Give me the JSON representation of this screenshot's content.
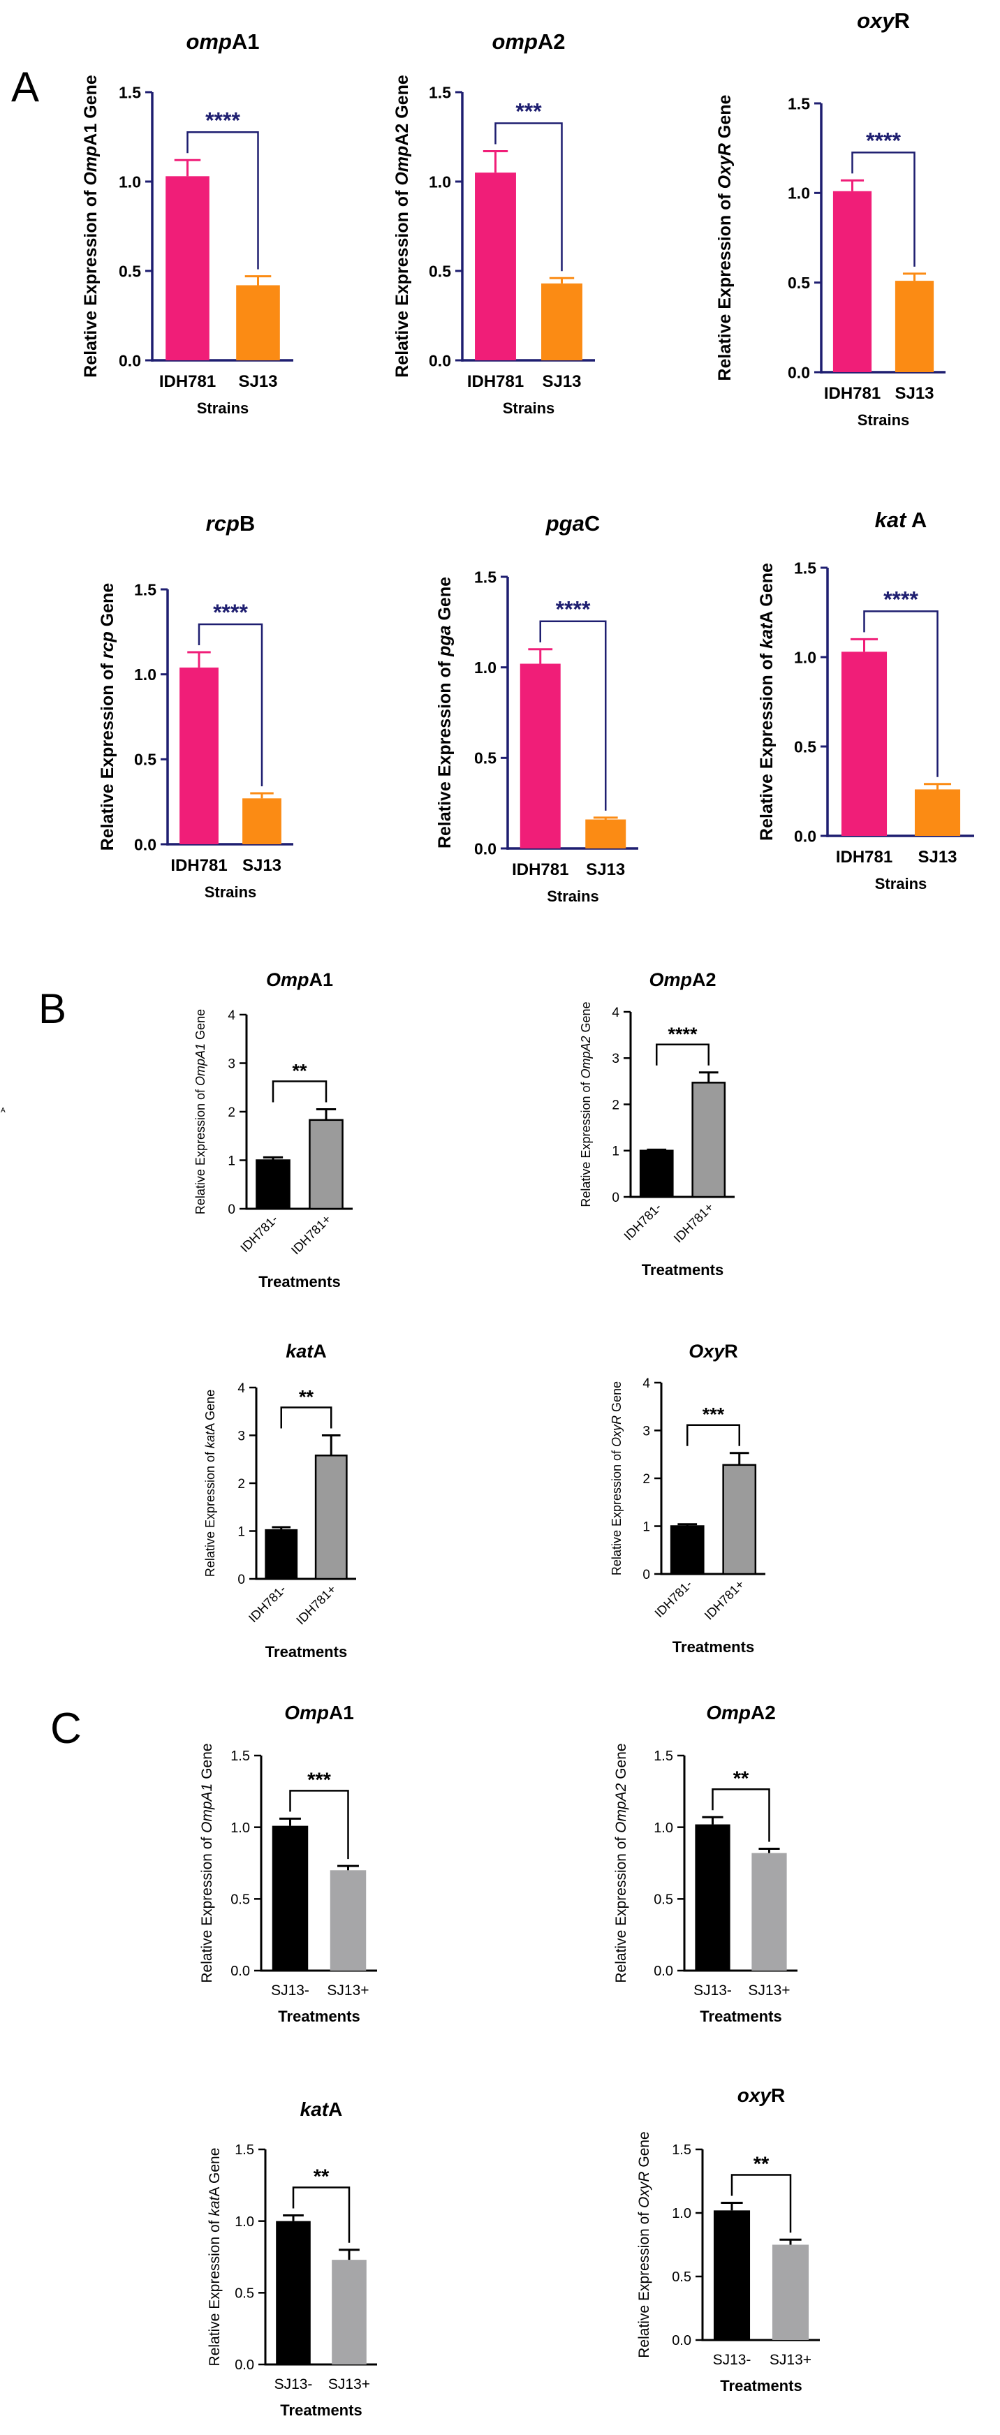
{
  "panels": {
    "A": {
      "label": "A",
      "color": "#1e1e70",
      "xlabel": "Strains",
      "stat_color": "#1e1e70"
    },
    "B": {
      "label": "B",
      "color": "#000000",
      "xlabel": "Treatments",
      "stat_color": "#000000"
    },
    "C": {
      "label": "C",
      "color": "#000000",
      "xlabel": "Treatments",
      "stat_color": "#000000"
    }
  },
  "stray_label": "A",
  "colors": {
    "idh781": "#f01e78",
    "sj13": "#fb8b14",
    "control": "#000000",
    "treated_b": "#9b9b9b",
    "treated_c": "#a6a6a8",
    "axis_a": "#1e1e70"
  },
  "chart_data": [
    {
      "id": "A1",
      "panel": "A",
      "type": "bar",
      "title_italic": "omp",
      "title_rest": "A1",
      "ylabel_pre": "Relative Expression of ",
      "ylabel_italic": "Omp",
      "ylabel_post": "A1 Gene",
      "xlabel": "Strains",
      "categories": [
        "IDH781",
        "SJ13"
      ],
      "values": [
        1.03,
        0.42
      ],
      "errors": [
        0.09,
        0.05
      ],
      "bar_colors": [
        "#f01e78",
        "#fb8b14"
      ],
      "ylim": [
        0,
        1.5
      ],
      "ticks": [
        "0.0",
        "0.5",
        "1.0",
        "1.5"
      ],
      "significance": "****"
    },
    {
      "id": "A2",
      "panel": "A",
      "type": "bar",
      "title_italic": "omp",
      "title_rest": "A2",
      "ylabel_pre": "Relative Expression of ",
      "ylabel_italic": "Omp",
      "ylabel_post": "A2 Gene",
      "xlabel": "Strains",
      "categories": [
        "IDH781",
        "SJ13"
      ],
      "values": [
        1.05,
        0.43
      ],
      "errors": [
        0.12,
        0.03
      ],
      "bar_colors": [
        "#f01e78",
        "#fb8b14"
      ],
      "ylim": [
        0,
        1.5
      ],
      "ticks": [
        "0.0",
        "0.5",
        "1.0",
        "1.5"
      ],
      "significance": "***"
    },
    {
      "id": "A3",
      "panel": "A",
      "type": "bar",
      "title_italic": "oxy",
      "title_rest": "R",
      "ylabel_pre": "Relative Expression of ",
      "ylabel_italic": "OxyR",
      "ylabel_post": " Gene",
      "xlabel": "Strains",
      "categories": [
        "IDH781",
        "SJ13"
      ],
      "values": [
        1.01,
        0.51
      ],
      "errors": [
        0.06,
        0.04
      ],
      "bar_colors": [
        "#f01e78",
        "#fb8b14"
      ],
      "ylim": [
        0,
        1.5
      ],
      "ticks": [
        "0.0",
        "0.5",
        "1.0",
        "1.5"
      ],
      "significance": "****"
    },
    {
      "id": "A4",
      "panel": "A",
      "type": "bar",
      "title_italic": "rcp",
      "title_rest": "B",
      "ylabel_pre": "Relative Expression of ",
      "ylabel_italic": "rcp",
      "ylabel_post": " Gene",
      "xlabel": "Strains",
      "categories": [
        "IDH781",
        "SJ13"
      ],
      "values": [
        1.04,
        0.27
      ],
      "errors": [
        0.09,
        0.03
      ],
      "bar_colors": [
        "#f01e78",
        "#fb8b14"
      ],
      "ylim": [
        0,
        1.5
      ],
      "ticks": [
        "0.0",
        "0.5",
        "1.0",
        "1.5"
      ],
      "significance": "****"
    },
    {
      "id": "A5",
      "panel": "A",
      "type": "bar",
      "title_italic": "pga",
      "title_rest": "C",
      "ylabel_pre": "Relative Expression of ",
      "ylabel_italic": "pga",
      "ylabel_post": " Gene",
      "xlabel": "Strains",
      "categories": [
        "IDH781",
        "SJ13"
      ],
      "values": [
        1.02,
        0.16
      ],
      "errors": [
        0.08,
        0.01
      ],
      "bar_colors": [
        "#f01e78",
        "#fb8b14"
      ],
      "ylim": [
        0,
        1.5
      ],
      "ticks": [
        "0.0",
        "0.5",
        "1.0",
        "1.5"
      ],
      "significance": "****"
    },
    {
      "id": "A6",
      "panel": "A",
      "type": "bar",
      "title_italic": "kat",
      "title_rest": " A",
      "ylabel_pre": "Relative Expression of ",
      "ylabel_italic": "kat",
      "ylabel_post": "A Gene",
      "xlabel": "Strains",
      "categories": [
        "IDH781",
        "SJ13"
      ],
      "values": [
        1.03,
        0.26
      ],
      "errors": [
        0.07,
        0.03
      ],
      "bar_colors": [
        "#f01e78",
        "#fb8b14"
      ],
      "ylim": [
        0,
        1.5
      ],
      "ticks": [
        "0.0",
        "0.5",
        "1.0",
        "1.5"
      ],
      "significance": "****"
    },
    {
      "id": "B1",
      "panel": "B",
      "type": "bar",
      "title_italic": "Omp",
      "title_rest": "A1",
      "ylabel_pre": "Relative Expression of ",
      "ylabel_italic": "OmpA1",
      "ylabel_post": " Gene",
      "xlabel": "Treatments",
      "categories": [
        "IDH781-",
        "IDH781+"
      ],
      "values": [
        1.0,
        1.83
      ],
      "errors": [
        0.06,
        0.22
      ],
      "bar_colors": [
        "#000000",
        "#9b9b9b"
      ],
      "ylim": [
        0,
        4
      ],
      "ticks": [
        "0",
        "1",
        "2",
        "3",
        "4"
      ],
      "significance": "**"
    },
    {
      "id": "B2",
      "panel": "B",
      "type": "bar",
      "title_italic": "Omp",
      "title_rest": "A2",
      "ylabel_pre": "Relative Expression of ",
      "ylabel_italic": "OmpA2",
      "ylabel_post": " Gene",
      "xlabel": "Treatments",
      "categories": [
        "IDH781-",
        "IDH781+"
      ],
      "values": [
        1.0,
        2.47
      ],
      "errors": [
        0.02,
        0.22
      ],
      "bar_colors": [
        "#000000",
        "#9b9b9b"
      ],
      "ylim": [
        0,
        4
      ],
      "ticks": [
        "0",
        "1",
        "2",
        "3",
        "4"
      ],
      "significance": "****"
    },
    {
      "id": "B3",
      "panel": "B",
      "type": "bar",
      "title_italic": "kat",
      "title_rest": "A",
      "ylabel_pre": "Relative Expression of ",
      "ylabel_italic": "kat",
      "ylabel_post": "A Gene",
      "xlabel": "Treatments",
      "categories": [
        "IDH781-",
        "IDH781+"
      ],
      "values": [
        1.02,
        2.58
      ],
      "errors": [
        0.06,
        0.42
      ],
      "bar_colors": [
        "#000000",
        "#9b9b9b"
      ],
      "ylim": [
        0,
        4
      ],
      "ticks": [
        "0",
        "1",
        "2",
        "3",
        "4"
      ],
      "significance": "**"
    },
    {
      "id": "B4",
      "panel": "B",
      "type": "bar",
      "title_italic": "Oxy",
      "title_rest": "R",
      "ylabel_pre": "Relative Expression of ",
      "ylabel_italic": "OxyR",
      "ylabel_post": " Gene",
      "xlabel": "Treatments",
      "categories": [
        "IDH781-",
        "IDH781+"
      ],
      "values": [
        1.0,
        2.28
      ],
      "errors": [
        0.04,
        0.25
      ],
      "bar_colors": [
        "#000000",
        "#9b9b9b"
      ],
      "ylim": [
        0,
        4
      ],
      "ticks": [
        "0",
        "1",
        "2",
        "3",
        "4"
      ],
      "significance": "***"
    },
    {
      "id": "C1",
      "panel": "C",
      "type": "bar",
      "title_italic": "Omp",
      "title_rest": "A1",
      "ylabel_pre": "Relative Expression of ",
      "ylabel_italic": "OmpA1",
      "ylabel_post": " Gene",
      "xlabel": "Treatments",
      "categories": [
        "SJ13-",
        "SJ13+"
      ],
      "values": [
        1.01,
        0.7
      ],
      "errors": [
        0.05,
        0.03
      ],
      "bar_colors": [
        "#000000",
        "#a6a6a8"
      ],
      "ylim": [
        0,
        1.5
      ],
      "ticks": [
        "0.0",
        "0.5",
        "1.0",
        "1.5"
      ],
      "significance": "***"
    },
    {
      "id": "C2",
      "panel": "C",
      "type": "bar",
      "title_italic": "Omp",
      "title_rest": "A2",
      "ylabel_pre": "Relative Expression of ",
      "ylabel_italic": "OmpA2",
      "ylabel_post": " Gene",
      "xlabel": "Treatments",
      "categories": [
        "SJ13-",
        "SJ13+"
      ],
      "values": [
        1.02,
        0.82
      ],
      "errors": [
        0.05,
        0.03
      ],
      "bar_colors": [
        "#000000",
        "#a6a6a8"
      ],
      "ylim": [
        0,
        1.5
      ],
      "ticks": [
        "0.0",
        "0.5",
        "1.0",
        "1.5"
      ],
      "significance": "**"
    },
    {
      "id": "C3",
      "panel": "C",
      "type": "bar",
      "title_italic": "kat",
      "title_rest": "A",
      "ylabel_pre": "Relative Expression of ",
      "ylabel_italic": "kat",
      "ylabel_post": "A Gene",
      "xlabel": "Treatments",
      "categories": [
        "SJ13-",
        "SJ13+"
      ],
      "values": [
        1.0,
        0.73
      ],
      "errors": [
        0.04,
        0.07
      ],
      "bar_colors": [
        "#000000",
        "#a6a6a8"
      ],
      "ylim": [
        0,
        1.5
      ],
      "ticks": [
        "0.0",
        "0.5",
        "1.0",
        "1.5"
      ],
      "significance": "**"
    },
    {
      "id": "C4",
      "panel": "C",
      "type": "bar",
      "title_italic": "oxy",
      "title_rest": "R",
      "ylabel_pre": "Relative Expression of ",
      "ylabel_italic": "OxyR",
      "ylabel_post": " Gene",
      "xlabel": "Treatments",
      "categories": [
        "SJ13-",
        "SJ13+"
      ],
      "values": [
        1.02,
        0.75
      ],
      "errors": [
        0.06,
        0.04
      ],
      "bar_colors": [
        "#000000",
        "#a6a6a8"
      ],
      "ylim": [
        0,
        1.5
      ],
      "ticks": [
        "0.0",
        "0.5",
        "1.0",
        "1.5"
      ],
      "significance": "**"
    }
  ]
}
